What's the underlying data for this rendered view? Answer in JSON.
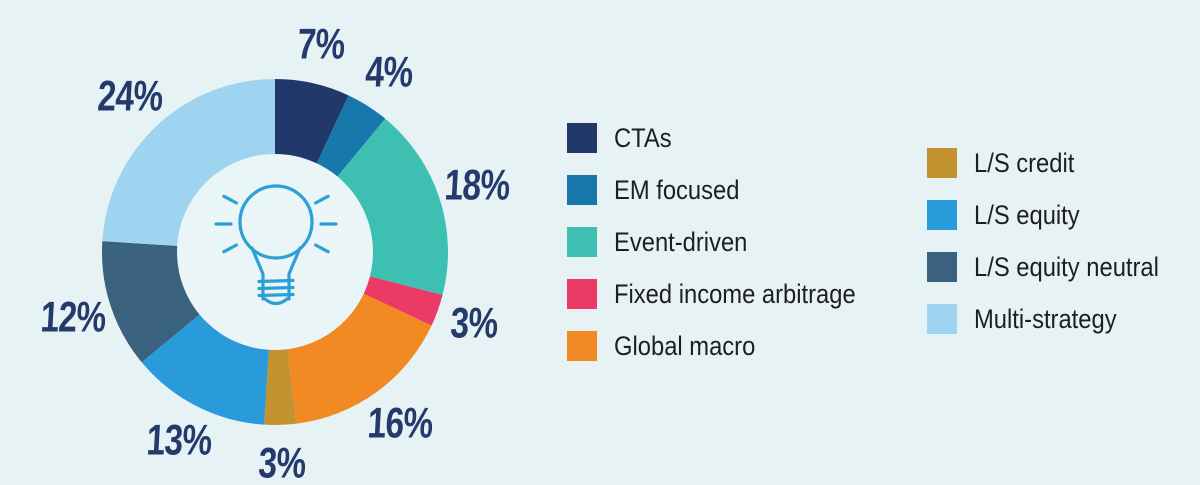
{
  "background_color": "#e7f2f5",
  "chart_data": {
    "type": "pie",
    "donut": true,
    "title": "",
    "start_angle_deg": 0,
    "direction": "clockwise",
    "center_icon": "lightbulb",
    "center_fill": "#eaf5f8",
    "icon_stroke": "#2d9fd6",
    "data_label_color": "#243a6b",
    "legend_position": "right-two-columns",
    "segments": [
      {
        "label": "CTAs",
        "value": 7,
        "data_label": "7%",
        "color": "#21386a"
      },
      {
        "label": "EM focused",
        "value": 4,
        "data_label": "4%",
        "color": "#1678ab"
      },
      {
        "label": "Event-driven",
        "value": 18,
        "data_label": "18%",
        "color": "#3dbfb1"
      },
      {
        "label": "Fixed income arbitrage",
        "value": 3,
        "data_label": "3%",
        "color": "#ec3a67"
      },
      {
        "label": "Global macro",
        "value": 16,
        "data_label": "16%",
        "color": "#f18a22"
      },
      {
        "label": "L/S credit",
        "value": 3,
        "data_label": "3%",
        "color": "#c2932f"
      },
      {
        "label": "L/S equity",
        "value": 13,
        "data_label": "13%",
        "color": "#2a9bda"
      },
      {
        "label": "L/S equity neutral",
        "value": 12,
        "data_label": "12%",
        "color": "#3a617e"
      },
      {
        "label": "Multi-strategy",
        "value": 24,
        "data_label": "24%",
        "color": "#9ed4ef"
      }
    ]
  },
  "legend": {
    "text_color": "#1e1e1c",
    "columns": [
      {
        "items": [
          {
            "label": "CTAs",
            "color": "#21386a"
          },
          {
            "label": "EM focused",
            "color": "#1678ab"
          },
          {
            "label": "Event-driven",
            "color": "#3dbfb1"
          },
          {
            "label": "Fixed income arbitrage",
            "color": "#ec3a67"
          },
          {
            "label": "Global macro",
            "color": "#f18a22"
          }
        ]
      },
      {
        "items": [
          {
            "label": "L/S credit",
            "color": "#c2932f"
          },
          {
            "label": "L/S equity",
            "color": "#2a9bda"
          },
          {
            "label": "L/S equity neutral",
            "color": "#3a617e"
          },
          {
            "label": "Multi-strategy",
            "color": "#9ed4ef"
          }
        ]
      }
    ]
  }
}
